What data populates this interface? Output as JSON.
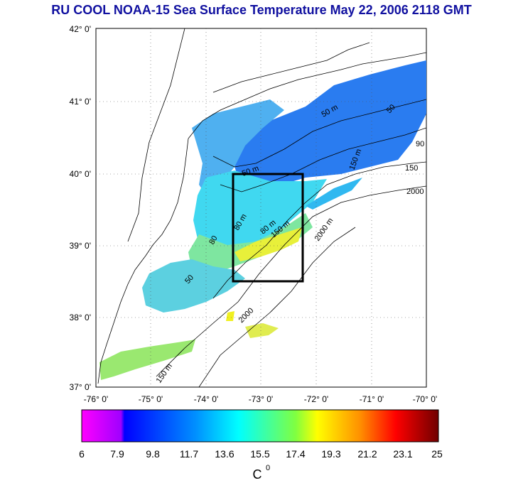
{
  "title": "RU COOL  NOAA-15 Sea Surface Temperature May 22, 2006 2118 GMT",
  "map": {
    "lat_labels": [
      "42° 0'",
      "41° 0'",
      "40° 0'",
      "39° 0'",
      "38° 0'",
      "37° 0'"
    ],
    "lon_labels": [
      "-76° 0'",
      "-75° 0'",
      "-74° 0'",
      "-73° 0'",
      "-72° 0'",
      "-71° 0'",
      "-70° 0'"
    ],
    "lat_range": [
      37,
      42
    ],
    "lon_range": [
      -76,
      -70
    ],
    "study_box": {
      "lon_min": -73.5,
      "lon_max": -72.25,
      "lat_min": 38.5,
      "lat_max": 40.0
    },
    "contour_labels": [
      "50 m",
      "80 m",
      "150 m",
      "2000 m",
      "50",
      "80",
      "2000",
      "150 m",
      "50 m",
      "80 m",
      "150 m",
      "2000",
      "150",
      "90",
      "50"
    ]
  },
  "colorbar": {
    "tick_labels": [
      "6",
      "7.9",
      "9.8",
      "11.7",
      "13.6",
      "15.5",
      "17.4",
      "19.3",
      "21.2",
      "23.1",
      "25"
    ],
    "unit_label": "C",
    "unit_superscript": "0",
    "range": [
      6,
      25
    ]
  },
  "colors": {
    "title": "#1010a0",
    "cold": "#0000ff",
    "mid": "#00ffff",
    "warm": "#ffff00",
    "hot": "#ff0000"
  }
}
